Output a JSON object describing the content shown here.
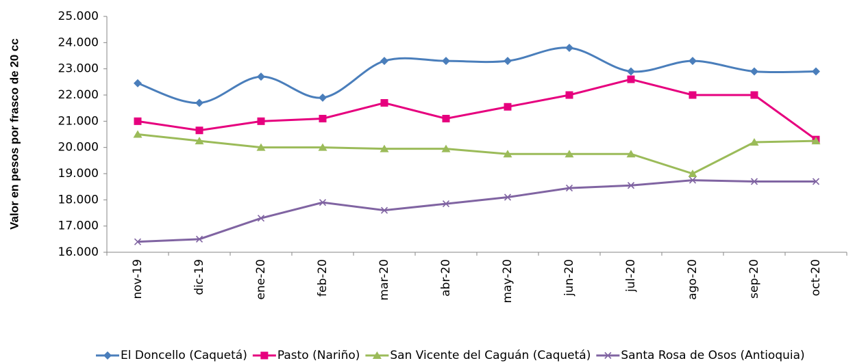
{
  "chart_data": {
    "type": "line",
    "y_label": "Valor en pesos por frasco de 20 cc",
    "categories": [
      "nov-19",
      "dic-19",
      "ene-20",
      "feb-20",
      "mar-20",
      "abr-20",
      "may-20",
      "jun-20",
      "jul-20",
      "ago-20",
      "sep-20",
      "oct-20"
    ],
    "series": [
      {
        "name": "El Doncello (Caquetá)",
        "color": "#4a7ebb",
        "marker": "diamond",
        "smooth": true,
        "values": [
          22450,
          21700,
          22700,
          21900,
          23300,
          23300,
          23300,
          23800,
          22900,
          23300,
          22900,
          22900
        ]
      },
      {
        "name": "Pasto (Nariño)",
        "color": "#e6007e",
        "marker": "square",
        "smooth": false,
        "values": [
          21000,
          20650,
          21000,
          21100,
          21700,
          21100,
          21550,
          22000,
          22600,
          22000,
          22000,
          20300
        ]
      },
      {
        "name": "San Vicente del Caguán (Caquetá)",
        "color": "#9bbb59",
        "marker": "triangle",
        "smooth": false,
        "values": [
          20500,
          20250,
          20000,
          20000,
          19950,
          19950,
          19750,
          19750,
          19750,
          19000,
          20200,
          20250
        ]
      },
      {
        "name": "Santa Rosa de Osos (Antioquia)",
        "color": "#8064a2",
        "marker": "x",
        "smooth": false,
        "values": [
          16400,
          16500,
          17300,
          17900,
          17600,
          17850,
          18100,
          18450,
          18550,
          18750,
          18700,
          18700
        ]
      }
    ],
    "ylim": [
      16000,
      25000
    ],
    "yticks": [
      {
        "value": 16000,
        "label": "16.000"
      },
      {
        "value": 17000,
        "label": "17.000"
      },
      {
        "value": 18000,
        "label": "18.000"
      },
      {
        "value": 19000,
        "label": "19.000"
      },
      {
        "value": 20000,
        "label": "20.000"
      },
      {
        "value": 21000,
        "label": "21.000"
      },
      {
        "value": 22000,
        "label": "22.000"
      },
      {
        "value": 23000,
        "label": "23.000"
      },
      {
        "value": 24000,
        "label": "24.000"
      },
      {
        "value": 25000,
        "label": "25.000"
      }
    ],
    "legend": "bottom"
  }
}
